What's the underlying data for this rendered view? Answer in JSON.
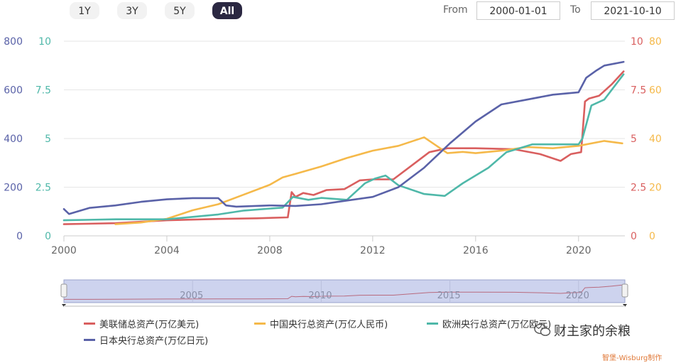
{
  "range_buttons": [
    "1Y",
    "3Y",
    "5Y",
    "All"
  ],
  "active_range": "All",
  "from_label": "From",
  "from_value": "2000-01-01",
  "to_label": "To",
  "to_value": "2021-10-10",
  "colors": {
    "fed": "#d95f5f",
    "pboc": "#f5b94a",
    "ecb": "#4fb8a9",
    "boj": "#5a62a8",
    "active_button": "#2b2842"
  },
  "watermark": "财主家的余粮",
  "credit": "智堡-Wisburg制作",
  "chart_data": {
    "type": "line",
    "x_range": [
      2000,
      2021.8
    ],
    "x_ticks": [
      "2000",
      "2004",
      "2008",
      "2012",
      "2016",
      "2020"
    ],
    "navigator_ticks": [
      "2005",
      "2010",
      "2015",
      "2020"
    ],
    "axes": {
      "left_outer": {
        "ticks": [
          "0",
          "200",
          "400",
          "600",
          "800"
        ],
        "range": [
          0,
          800
        ],
        "color": "#5a62a8"
      },
      "left_inner": {
        "ticks": [
          "0",
          "2.5",
          "5",
          "7.5",
          "10"
        ],
        "range": [
          0,
          10
        ],
        "color": "#4fb8a9"
      },
      "right_inner": {
        "ticks": [
          "0",
          "2.5",
          "5",
          "7.5",
          "10"
        ],
        "range": [
          0,
          10
        ],
        "color": "#d95f5f"
      },
      "right_outer": {
        "ticks": [
          "0",
          "20",
          "40",
          "60",
          "80"
        ],
        "range": [
          0,
          80
        ],
        "color": "#f5b94a"
      }
    },
    "grid": true,
    "legend_position": "bottom",
    "series": [
      {
        "name": "美联储总资产(万亿美元)",
        "axis": "right_inner",
        "color": "#d95f5f",
        "x": [
          2000,
          2002,
          2004,
          2006,
          2007.5,
          2008.7,
          2008.85,
          2009.0,
          2009.3,
          2009.7,
          2010.2,
          2010.9,
          2011.5,
          2012.0,
          2012.8,
          2013.5,
          2014.2,
          2014.9,
          2016,
          2017.5,
          2018.5,
          2019.3,
          2019.7,
          2020.1,
          2020.25,
          2020.4,
          2020.8,
          2021.3,
          2021.75
        ],
        "y": [
          0.6,
          0.65,
          0.8,
          0.87,
          0.9,
          0.95,
          2.25,
          2.0,
          2.2,
          2.1,
          2.35,
          2.4,
          2.85,
          2.9,
          2.9,
          3.6,
          4.3,
          4.5,
          4.5,
          4.45,
          4.2,
          3.85,
          4.2,
          4.3,
          6.9,
          7.05,
          7.2,
          7.8,
          8.45
        ]
      },
      {
        "name": "中国央行总资产(万亿人民币)",
        "axis": "right_outer",
        "color": "#f5b94a",
        "x": [
          2002,
          2003,
          2004,
          2005,
          2006,
          2007,
          2008,
          2008.5,
          2009,
          2010,
          2011,
          2012,
          2013,
          2014,
          2014.9,
          2015.5,
          2016,
          2017,
          2018,
          2019,
          2020,
          2021,
          2021.7
        ],
        "y": [
          4.8,
          5.5,
          7,
          10.5,
          13,
          17,
          21,
          24,
          25.5,
          28.5,
          32,
          35,
          37,
          40.5,
          34,
          34.5,
          34,
          35,
          36.5,
          36,
          37,
          39,
          38
        ]
      },
      {
        "name": "欧洲央行总资产(万亿欧元)",
        "axis": "left_inner",
        "color": "#4fb8a9",
        "x": [
          2000,
          2002,
          2004,
          2006,
          2007,
          2008.5,
          2008.9,
          2009.5,
          2010,
          2011,
          2011.7,
          2012.1,
          2012.5,
          2013,
          2014,
          2014.8,
          2015.5,
          2016.5,
          2017.2,
          2018.2,
          2019,
          2020.0,
          2020.15,
          2020.5,
          2021,
          2021.75
        ],
        "y": [
          0.8,
          0.85,
          0.85,
          1.1,
          1.3,
          1.45,
          2.0,
          1.85,
          1.95,
          1.85,
          2.7,
          2.95,
          3.1,
          2.6,
          2.15,
          2.05,
          2.7,
          3.5,
          4.3,
          4.7,
          4.7,
          4.7,
          5.0,
          6.7,
          7.0,
          8.3
        ]
      },
      {
        "name": "日本央行总资产(万亿日元)",
        "axis": "left_outer",
        "color": "#5a62a8",
        "x": [
          2000,
          2000.2,
          2001,
          2002,
          2003,
          2004,
          2005,
          2006,
          2006.3,
          2006.7,
          2008,
          2009,
          2010,
          2011,
          2012,
          2013,
          2014,
          2015,
          2016,
          2017,
          2018,
          2019,
          2020.0,
          2020.3,
          2020.7,
          2021,
          2021.75
        ],
        "y": [
          110,
          90,
          115,
          125,
          140,
          150,
          155,
          155,
          125,
          120,
          125,
          123,
          130,
          145,
          160,
          200,
          280,
          380,
          470,
          540,
          560,
          580,
          590,
          650,
          680,
          700,
          715
        ]
      }
    ]
  }
}
